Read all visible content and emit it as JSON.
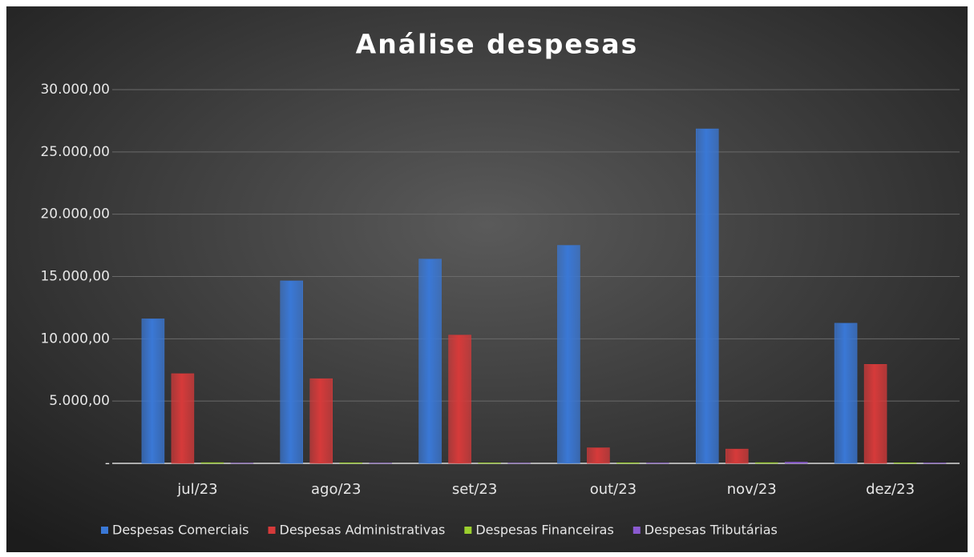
{
  "chart_data": {
    "type": "bar",
    "title": "Análise despesas",
    "categories": [
      "jul/23",
      "ago/23",
      "set/23",
      "out/23",
      "nov/23",
      "dez/23"
    ],
    "series": [
      {
        "name": "Despesas Comerciais",
        "color": "#3a78d6",
        "values": [
          11600,
          14650,
          16400,
          17500,
          26850,
          11250
        ]
      },
      {
        "name": "Despesas Administrativas",
        "color": "#d63a3a",
        "values": [
          7200,
          6800,
          10300,
          1250,
          1150,
          7950
        ]
      },
      {
        "name": "Despesas Financeiras",
        "color": "#9bcf2e",
        "values": [
          60,
          50,
          40,
          50,
          60,
          50
        ]
      },
      {
        "name": "Despesas Tributárias",
        "color": "#8a5ad0",
        "values": [
          20,
          20,
          20,
          30,
          100,
          30
        ]
      }
    ],
    "ylim": [
      0,
      30000
    ],
    "yticks": [
      {
        "value": 0,
        "label": "-"
      },
      {
        "value": 5000,
        "label": "5.000,00"
      },
      {
        "value": 10000,
        "label": "10.000,00"
      },
      {
        "value": 15000,
        "label": "15.000,00"
      },
      {
        "value": 20000,
        "label": "20.000,00"
      },
      {
        "value": 25000,
        "label": "25.000,00"
      },
      {
        "value": 30000,
        "label": "30.000,00"
      }
    ],
    "grid": true
  }
}
